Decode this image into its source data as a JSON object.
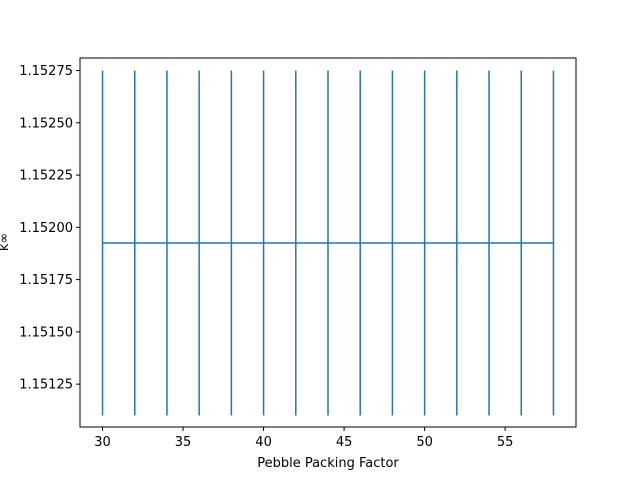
{
  "chart_data": {
    "type": "line",
    "title": "",
    "xlabel": "Pebble Packing Factor",
    "ylabel": "k∞",
    "xlim": [
      28.6,
      59.4
    ],
    "ylim": [
      1.151045,
      1.15281
    ],
    "grid": false,
    "legend": "none",
    "x_ticks": [
      30,
      35,
      40,
      45,
      50,
      55
    ],
    "x_tick_labels": [
      "30",
      "35",
      "40",
      "45",
      "50",
      "55"
    ],
    "y_ticks": [
      1.15125,
      1.1515,
      1.15175,
      1.152,
      1.15225,
      1.1525,
      1.15275
    ],
    "y_tick_labels": [
      "1.15125",
      "1.15150",
      "1.15175",
      "1.15200",
      "1.15225",
      "1.15250",
      "1.15275"
    ],
    "series": [
      {
        "x": [
          30,
          32,
          34,
          36,
          38,
          40,
          42,
          44,
          46,
          48,
          50,
          52,
          54,
          56,
          58
        ],
        "y": [
          1.151925,
          1.151925,
          1.151925,
          1.151925,
          1.151925,
          1.151925,
          1.151925,
          1.151925,
          1.151925,
          1.151925,
          1.151925,
          1.151925,
          1.151925,
          1.151925,
          1.151925
        ],
        "yerr": [
          0.000825,
          0.000825,
          0.000825,
          0.000825,
          0.000825,
          0.000825,
          0.000825,
          0.000825,
          0.000825,
          0.000825,
          0.000825,
          0.000825,
          0.000825,
          0.000825,
          0.000825
        ],
        "color": "#1f77b4"
      }
    ]
  }
}
